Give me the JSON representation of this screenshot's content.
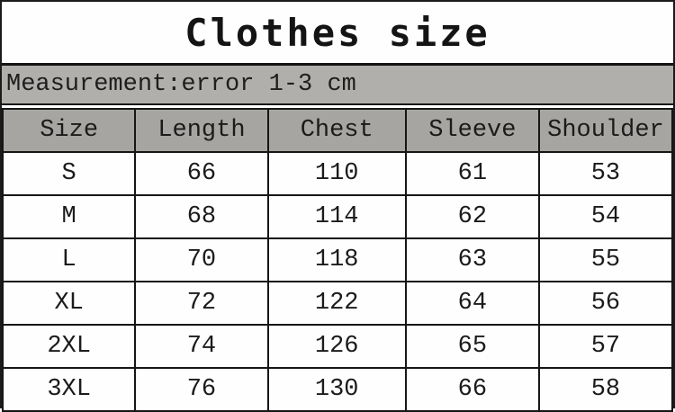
{
  "title": "Clothes size",
  "banner": "Measurement:error 1-3 cm",
  "colors": {
    "banner_bg": "#b1afac",
    "header_bg": "#a7a5a2",
    "border": "#161616",
    "row_bg": "#fefefe"
  },
  "chart_data": {
    "type": "table",
    "title": "Clothes size",
    "note": "Measurement:error 1-3 cm",
    "columns": [
      "Size",
      "Length",
      "Chest",
      "Sleeve",
      "Shoulder"
    ],
    "rows": [
      [
        "S",
        "66",
        "110",
        "61",
        "53"
      ],
      [
        "M",
        "68",
        "114",
        "62",
        "54"
      ],
      [
        "L",
        "70",
        "118",
        "63",
        "55"
      ],
      [
        "XL",
        "72",
        "122",
        "64",
        "56"
      ],
      [
        "2XL",
        "74",
        "126",
        "65",
        "57"
      ],
      [
        "3XL",
        "76",
        "130",
        "66",
        "58"
      ]
    ]
  }
}
